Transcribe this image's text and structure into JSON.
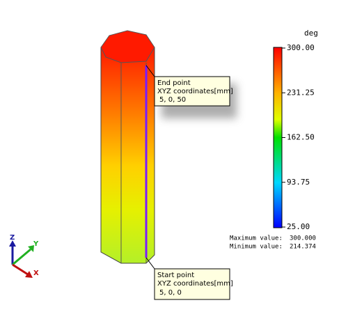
{
  "legend": {
    "unit": "deg",
    "ticks": [
      "300.00",
      "231.25",
      "162.50",
      "93.75",
      "25.00"
    ],
    "max_label": "Maximum value:",
    "max_value": "300.000",
    "min_label": "Minimum value:",
    "min_value": "214.374"
  },
  "callouts": [
    {
      "title": "End point",
      "label": "XYZ coordinates[mm]",
      "coords": "5, 0, 50"
    },
    {
      "title": "Start point",
      "label": "XYZ coordinates[mm]",
      "coords": "5, 0, 0"
    }
  ],
  "axes": {
    "z": "Z",
    "y": "Y",
    "x": "X"
  }
}
